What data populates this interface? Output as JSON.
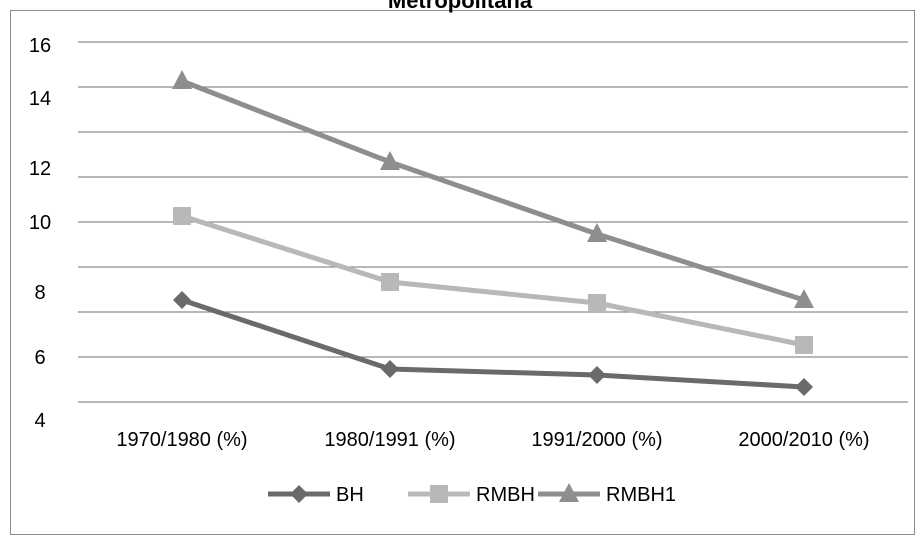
{
  "chart_data": {
    "type": "line",
    "title": "Metropolitana",
    "categories": [
      "1970/1980 (%)",
      "1980/1991 (%)",
      "1991/2000 (%)",
      "2000/2010 (%)"
    ],
    "y_ticks": [
      "16",
      "14",
      "12",
      "10",
      "8",
      "6",
      "4"
    ],
    "ylim": [
      4,
      16
    ],
    "grid": true,
    "legend_position": "bottom",
    "series": [
      {
        "name": "BH",
        "values": [
          7.4,
          5.1,
          4.9,
          4.5
        ],
        "color": "#6a6a6a",
        "marker": "diamond"
      },
      {
        "name": "RMBH",
        "values": [
          10.2,
          8.0,
          7.3,
          5.9
        ],
        "color": "#b8b8b8",
        "marker": "square"
      },
      {
        "name": "RMBH1",
        "values": [
          14.7,
          12.0,
          9.6,
          7.4
        ],
        "color": "#8e8e8e",
        "marker": "triangle"
      }
    ]
  }
}
